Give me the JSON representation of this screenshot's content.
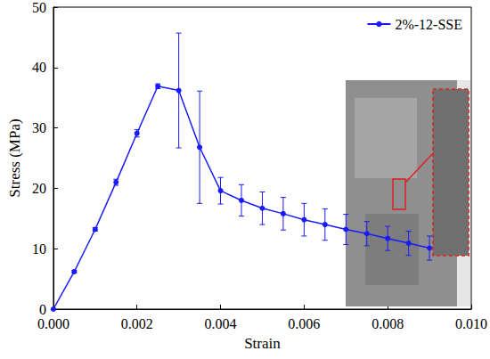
{
  "chart_data": {
    "type": "line",
    "x_label": "Strain",
    "y_label": "Stress (MPa)",
    "x": [
      0,
      0.0005,
      0.001,
      0.0015,
      0.002,
      0.0025,
      0.003,
      0.0035,
      0.004,
      0.0045,
      0.005,
      0.0055,
      0.006,
      0.0065,
      0.007,
      0.0075,
      0.008,
      0.0085,
      0.009
    ],
    "series": [
      {
        "name": "2%-12-SSE",
        "color": "#1a1aff",
        "marker": "circle",
        "line_style": "solid",
        "values": [
          0,
          6.2,
          13.2,
          21.0,
          29.1,
          36.9,
          36.2,
          26.8,
          19.6,
          18.0,
          16.7,
          15.8,
          14.8,
          14.0,
          13.2,
          12.5,
          11.7,
          10.9,
          10.1
        ],
        "errors": [
          0,
          0.2,
          0.3,
          0.5,
          0.6,
          0.4,
          9.5,
          9.3,
          2.2,
          2.6,
          2.7,
          2.7,
          2.7,
          2.6,
          2.5,
          2.0,
          2.0,
          2.0,
          2.0
        ]
      }
    ],
    "xlim": [
      0,
      0.01
    ],
    "xticks": [
      {
        "value": 0,
        "label": "0.000"
      },
      {
        "value": 0.002,
        "label": "0.002"
      },
      {
        "value": 0.004,
        "label": "0.004"
      },
      {
        "value": 0.006,
        "label": "0.006"
      },
      {
        "value": 0.008,
        "label": "0.008"
      },
      {
        "value": 0.01,
        "label": "0.010"
      }
    ],
    "ylim": [
      0,
      50
    ],
    "yticks": [
      0,
      10,
      20,
      30,
      40,
      50
    ],
    "grid": false,
    "legend": "upper right"
  }
}
